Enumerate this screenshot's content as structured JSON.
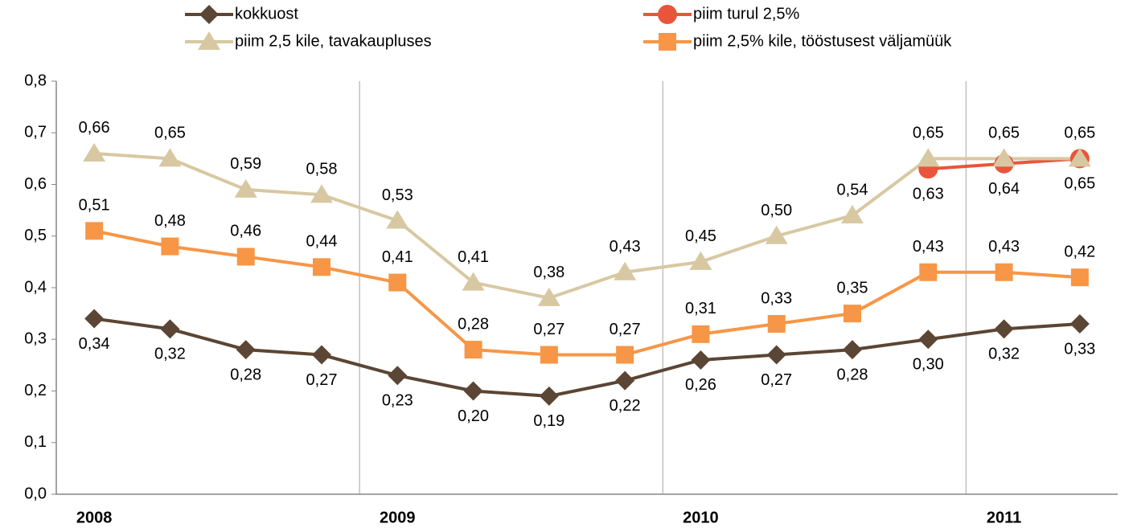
{
  "chart_data": {
    "type": "line",
    "categories": [
      "2008",
      null,
      null,
      null,
      "2009",
      null,
      null,
      null,
      "2010",
      null,
      null,
      null,
      "2011",
      null
    ],
    "ylim": [
      0,
      0.8
    ],
    "yticks": [
      {
        "value": 0,
        "label": "0,0"
      },
      {
        "value": 0.1,
        "label": "0,1"
      },
      {
        "value": 0.2,
        "label": "0,2"
      },
      {
        "value": 0.3,
        "label": "0,3"
      },
      {
        "value": 0.4,
        "label": "0,4"
      },
      {
        "value": 0.5,
        "label": "0,5"
      },
      {
        "value": 0.6,
        "label": "0,6"
      },
      {
        "value": 0.7,
        "label": "0,7"
      },
      {
        "value": 0.8,
        "label": "0,8"
      }
    ],
    "series": [
      {
        "name": "kokkuost",
        "color": "#5b4534",
        "marker": "diamond",
        "values": [
          0.34,
          0.32,
          0.28,
          0.27,
          0.23,
          0.2,
          0.19,
          0.22,
          0.26,
          0.27,
          0.28,
          0.3,
          0.32,
          0.33
        ],
        "value_labels": [
          "0,34",
          "0,32",
          "0,28",
          "0,27",
          "0,23",
          "0,20",
          "0,19",
          "0,22",
          "0,26",
          "0,27",
          "0,28",
          "0,30",
          "0,32",
          "0,33"
        ]
      },
      {
        "name": "piim turul 2,5%",
        "color": "#e9553b",
        "marker": "circle",
        "values": [
          null,
          null,
          null,
          null,
          null,
          null,
          null,
          null,
          null,
          null,
          null,
          0.63,
          0.64,
          0.65
        ],
        "value_labels": [
          null,
          null,
          null,
          null,
          null,
          null,
          null,
          null,
          null,
          null,
          null,
          "0,63",
          "0,64",
          "0,65"
        ]
      },
      {
        "name": "piim 2,5 kile, tavakaupluses",
        "color": "#d8c8a2",
        "marker": "triangle",
        "values": [
          0.66,
          0.65,
          0.59,
          0.58,
          0.53,
          0.41,
          0.38,
          0.43,
          0.45,
          0.5,
          0.54,
          0.65,
          0.65,
          0.65
        ],
        "value_labels": [
          "0,66",
          "0,65",
          "0,59",
          "0,58",
          "0,53",
          "0,41",
          "0,38",
          "0,43",
          "0,45",
          "0,50",
          "0,54",
          "0,65",
          "0,65",
          "0,65"
        ]
      },
      {
        "name": "piim 2,5% kile, tööstusest väljamüük",
        "color": "#f79646",
        "marker": "square",
        "values": [
          0.51,
          0.48,
          0.46,
          0.44,
          0.41,
          0.28,
          0.27,
          0.27,
          0.31,
          0.33,
          0.35,
          0.43,
          0.43,
          0.42
        ],
        "value_labels": [
          "0,51",
          "0,48",
          "0,46",
          "0,44",
          "0,41",
          "0,28",
          "0,27",
          "0,27",
          "0,31",
          "0,33",
          "0,35",
          "0,43",
          "0,43",
          "0,42"
        ]
      }
    ]
  }
}
